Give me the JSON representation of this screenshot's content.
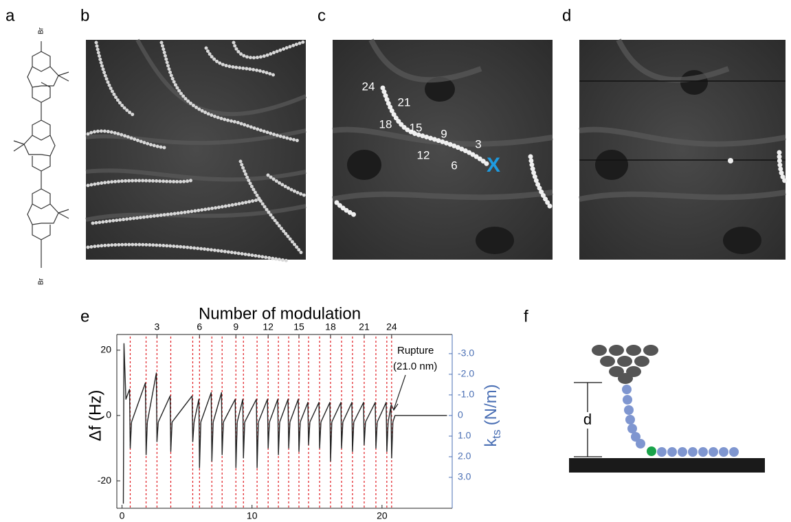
{
  "figure": {
    "panel_labels": [
      "a",
      "b",
      "c",
      "d",
      "e",
      "f"
    ],
    "panel_a": {
      "labels": [
        "Br",
        "Br"
      ]
    },
    "panel_c": {
      "labels": [
        "24",
        "21",
        "18",
        "15",
        "9",
        "3",
        "12",
        "6"
      ],
      "marker": "X"
    },
    "panel_f": {
      "label": "d"
    }
  },
  "chart_data": {
    "type": "line",
    "title": "Number of modulation",
    "xlim": [
      -0.4,
      25.4
    ],
    "xticks": [
      0,
      10,
      20
    ],
    "ylim": [
      -28.4,
      24.8
    ],
    "yticks": [
      -20,
      0,
      20
    ],
    "ylabel": "Δf (Hz)",
    "y2lim": [
      4.5,
      -3.93
    ],
    "y2ticks": [
      {
        "value": -3,
        "label": "-3.0"
      },
      {
        "value": -2,
        "label": "-2.0"
      },
      {
        "value": -1,
        "label": "-1.0"
      },
      0,
      {
        "value": 1,
        "label": "1.0"
      },
      {
        "value": 2,
        "label": "2.0"
      },
      {
        "value": 3,
        "label": "3.0"
      }
    ],
    "y2label": {
      "symbol": "k",
      "subscript": "ts",
      "unit": "(N/m)"
    },
    "y2color": "#4a6fb4",
    "top_ticks": [
      {
        "value": 2.69,
        "label": "3"
      },
      {
        "value": 5.96,
        "label": "6"
      },
      {
        "value": 8.76,
        "label": "9"
      },
      {
        "value": 11.24,
        "label": "12"
      },
      {
        "value": 13.61,
        "label": "15"
      },
      {
        "value": 16.04,
        "label": "18"
      },
      {
        "value": 18.63,
        "label": "21"
      },
      {
        "value": 20.74,
        "label": "24"
      }
    ],
    "modulations": [
      0.63,
      1.85,
      2.69,
      3.75,
      5.44,
      5.96,
      6.91,
      7.7,
      8.76,
      9.34,
      10.39,
      11.24,
      12.03,
      12.82,
      13.61,
      14.35,
      15.2,
      16.04,
      16.89,
      17.73,
      18.63,
      19.53,
      20.37,
      20.74
    ],
    "modulation_color": "#e0191f",
    "annotation": [
      "Rupture",
      "(21.0 nm)"
    ],
    "x": [
      0.1,
      0.15,
      0.3,
      0.58,
      0.63,
      0.73,
      1.8,
      1.85,
      1.95,
      2.64,
      2.69,
      2.79,
      3.7,
      3.75,
      3.85,
      5.39,
      5.44,
      5.54,
      5.91,
      5.96,
      6.06,
      6.86,
      6.91,
      7.01,
      7.65,
      7.7,
      7.8,
      8.71,
      8.76,
      8.86,
      9.29,
      9.34,
      9.44,
      10.34,
      10.39,
      10.49,
      11.19,
      11.24,
      11.34,
      11.98,
      12.03,
      12.13,
      12.77,
      12.82,
      12.92,
      13.56,
      13.61,
      13.71,
      14.3,
      14.35,
      14.45,
      15.15,
      15.2,
      15.3,
      15.99,
      16.04,
      16.14,
      16.84,
      16.89,
      16.99,
      17.68,
      17.73,
      17.83,
      18.58,
      18.63,
      18.73,
      19.48,
      19.53,
      19.63,
      20.32,
      20.37,
      20.47,
      20.69,
      20.74,
      20.84,
      21.0,
      25.0
    ],
    "series": [
      {
        "color": "#222222",
        "values": [
          -27,
          22,
          5,
          8,
          -10,
          -2,
          10,
          -12,
          -2,
          13,
          -8,
          -2,
          6,
          -11,
          -2,
          6,
          -8,
          -2,
          5,
          -16,
          -2,
          7,
          -14,
          -2,
          7,
          -12,
          -2,
          5,
          -16,
          -2,
          5,
          -13,
          -2,
          5,
          -16,
          -2,
          5,
          -10,
          -2,
          5,
          -12,
          -2,
          5,
          -10,
          -2,
          5,
          -11,
          -2,
          4,
          -9,
          -2,
          4,
          -10,
          -2,
          4,
          -14,
          -2,
          4,
          -10,
          -2,
          4,
          -11,
          -2,
          4,
          -9,
          -2,
          4,
          -10,
          -2,
          4,
          -11,
          -2,
          3,
          -13,
          -2,
          0,
          0
        ]
      }
    ]
  }
}
